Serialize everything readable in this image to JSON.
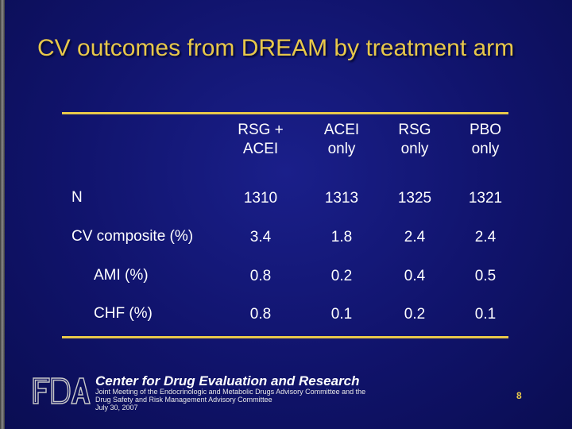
{
  "slide": {
    "title": "CV outcomes from DREAM by treatment arm",
    "page_number": "8",
    "accent_color": "#e8c84a",
    "background_color": "#10136b"
  },
  "table": {
    "headers": [
      "RSG +\nACEI",
      "ACEI\nonly",
      "RSG\nonly",
      "PBO\nonly"
    ],
    "header_lines": [
      [
        "RSG +",
        "ACEI"
      ],
      [
        "ACEI",
        "only"
      ],
      [
        "RSG",
        "only"
      ],
      [
        "PBO",
        "only"
      ]
    ],
    "rows": [
      {
        "label": "N",
        "values": [
          "1310",
          "1313",
          "1325",
          "1321"
        ]
      },
      {
        "label": "CV composite (%)",
        "values": [
          "3.4",
          "1.8",
          "2.4",
          "2.4"
        ]
      },
      {
        "label": "AMI (%)",
        "values": [
          "0.8",
          "0.2",
          "0.4",
          "0.5"
        ]
      },
      {
        "label": "CHF (%)",
        "values": [
          "0.8",
          "0.1",
          "0.2",
          "0.1"
        ]
      }
    ]
  },
  "footer": {
    "center_name": "Center for Drug Evaluation and Research",
    "meeting_line1": "Joint Meeting of the Endocrinologic and Metabolic Drugs Advisory Committee and the",
    "meeting_line2": "Drug Safety and Risk Management Advisory Committee",
    "date": "July 30, 2007",
    "logo_text": "FDA"
  }
}
